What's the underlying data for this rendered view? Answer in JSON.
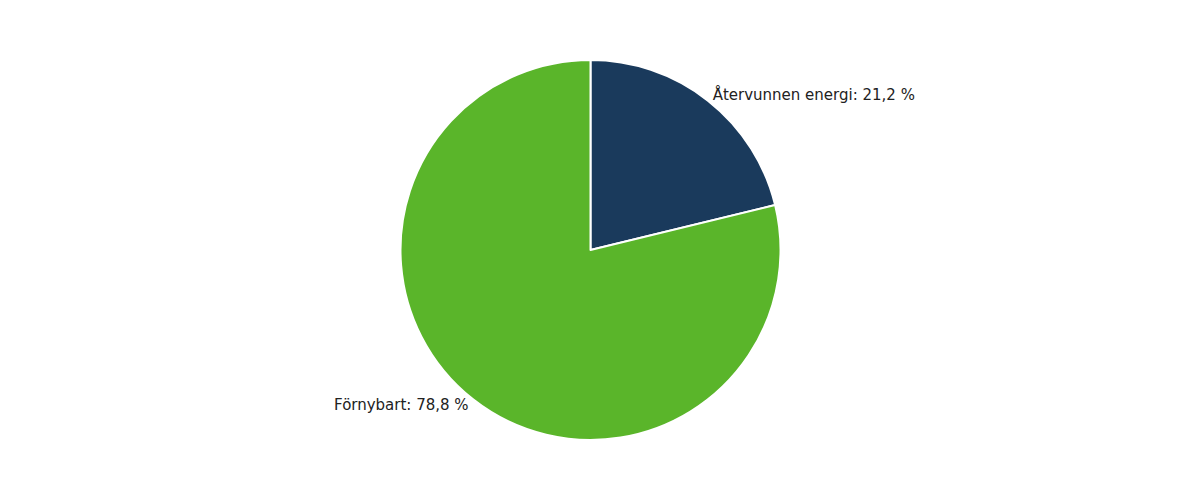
{
  "chart_data": {
    "type": "pie",
    "categories": [
      "Återvunnen energi: 21,2 %",
      "Förnybart: 78,8 %"
    ],
    "values": [
      21.2,
      78.8
    ],
    "colors": [
      "#1a3a5c",
      "#5ab52a"
    ]
  }
}
